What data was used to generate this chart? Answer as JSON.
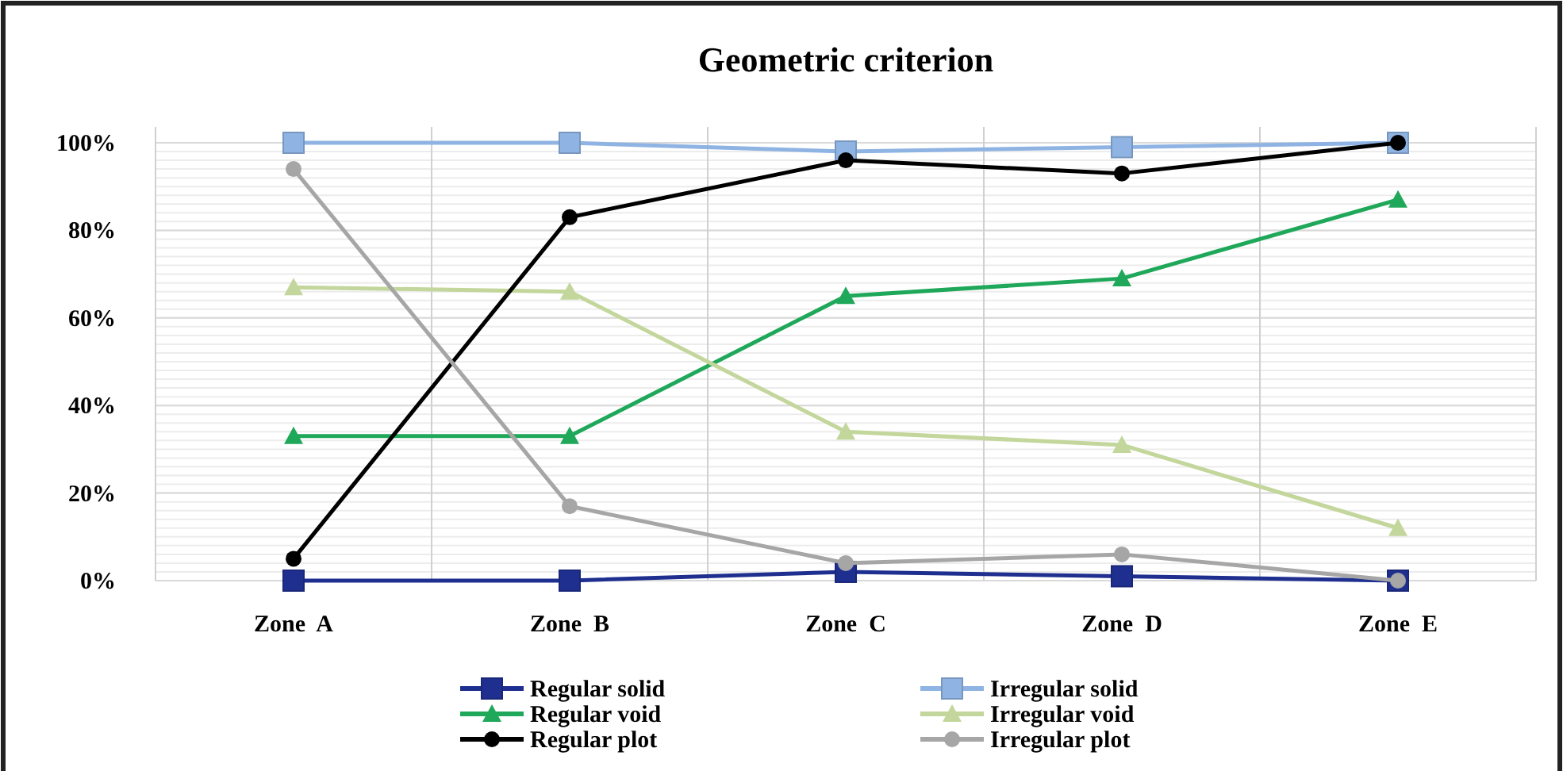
{
  "chart_data": {
    "type": "line",
    "title": "Geometric criterion",
    "categories": [
      "Zone  A",
      "Zone  B",
      "Zone  C",
      "Zone  D",
      "Zone  E"
    ],
    "series": [
      {
        "name": "Regular solid",
        "color": "#1f2f8f",
        "marker": "square",
        "values": [
          0,
          0,
          2,
          1,
          0
        ]
      },
      {
        "name": "Irregular solid",
        "color": "#8fb4e3",
        "marker": "square",
        "values": [
          100,
          100,
          98,
          99,
          100
        ]
      },
      {
        "name": "Regular void",
        "color": "#1fa85a",
        "marker": "triangle",
        "values": [
          33,
          33,
          65,
          69,
          87
        ]
      },
      {
        "name": "Irregular void",
        "color": "#c3d69b",
        "marker": "triangle",
        "values": [
          67,
          66,
          34,
          31,
          12
        ]
      },
      {
        "name": "Regular plot",
        "color": "#000000",
        "marker": "circle",
        "values": [
          5,
          83,
          96,
          93,
          100
        ]
      },
      {
        "name": "Irregular plot",
        "color": "#a6a6a6",
        "marker": "circle",
        "values": [
          94,
          17,
          4,
          6,
          0
        ]
      }
    ],
    "ylim": [
      0,
      100
    ],
    "yticks": [
      {
        "value": 0,
        "label": "0%"
      },
      {
        "value": 20,
        "label": "20%"
      },
      {
        "value": 40,
        "label": "40%"
      },
      {
        "value": 60,
        "label": "60%"
      },
      {
        "value": 80,
        "label": "80%"
      },
      {
        "value": 100,
        "label": "100%"
      }
    ],
    "grid": true,
    "legend": "bottom"
  }
}
